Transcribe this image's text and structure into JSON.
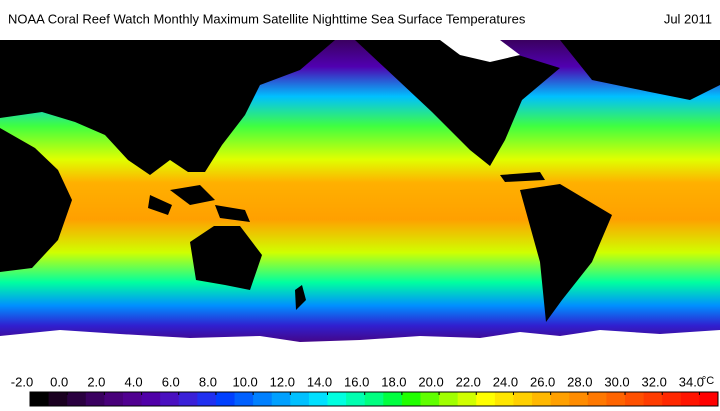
{
  "title": "NOAA Coral Reef Watch Monthly Maximum Satellite Nighttime Sea Surface Temperatures",
  "date": "Jul 2011",
  "colorbar": {
    "range": [
      -2,
      35
    ],
    "unit": "°C",
    "ticks": [
      {
        "value": -2,
        "label": "-2.0"
      },
      {
        "value": 0,
        "label": "0.0"
      },
      {
        "value": 2,
        "label": "2.0"
      },
      {
        "value": 4,
        "label": "4.0"
      },
      {
        "value": 6,
        "label": "6.0"
      },
      {
        "value": 8,
        "label": "8.0"
      },
      {
        "value": 10,
        "label": "10.0"
      },
      {
        "value": 12,
        "label": "12.0"
      },
      {
        "value": 14,
        "label": "14.0"
      },
      {
        "value": 16,
        "label": "16.0"
      },
      {
        "value": 18,
        "label": "18.0"
      },
      {
        "value": 20,
        "label": "20.0"
      },
      {
        "value": 22,
        "label": "22.0"
      },
      {
        "value": 24,
        "label": "24.0"
      },
      {
        "value": 26,
        "label": "26.0"
      },
      {
        "value": 28,
        "label": "28.0"
      },
      {
        "value": 30,
        "label": "30.0"
      },
      {
        "value": 32,
        "label": "32.0"
      },
      {
        "value": 34,
        "label": "34.0"
      }
    ],
    "colors": [
      "#000000",
      "#1a0020",
      "#2a0040",
      "#3a0060",
      "#48007a",
      "#500090",
      "#5000a8",
      "#4a10c0",
      "#3a20d8",
      "#2030f0",
      "#0040ff",
      "#0060ff",
      "#0080ff",
      "#00a0ff",
      "#00c0ff",
      "#00e0ff",
      "#00ffe0",
      "#00ffb0",
      "#00ff80",
      "#00ff40",
      "#20ff00",
      "#60ff00",
      "#a0ff00",
      "#d0ff00",
      "#ffff00",
      "#ffe600",
      "#ffd000",
      "#ffb800",
      "#ffa000",
      "#ff8c00",
      "#ff7800",
      "#ff6400",
      "#ff5000",
      "#ff3c00",
      "#ff2800",
      "#ff1400",
      "#ff0000"
    ]
  }
}
